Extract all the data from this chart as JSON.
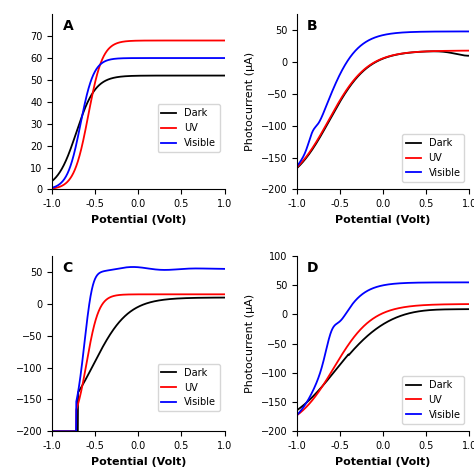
{
  "colors": [
    "black",
    "red",
    "blue"
  ],
  "legend_labels": [
    "Dark",
    "UV",
    "Visible"
  ],
  "xlabel": "Potential (Volt)",
  "ylabel_BC": "Photocurrent (μA)",
  "xlim": [
    -1.0,
    1.0
  ],
  "xticks": [
    -1.0,
    -0.5,
    0.0,
    0.5,
    1.0
  ],
  "panel_labels": [
    "A",
    "B",
    "C",
    "D"
  ],
  "ylim_B": [
    -200,
    75
  ],
  "ylim_D": [
    -200,
    100
  ],
  "yticks_B": [
    -200,
    -150,
    -100,
    -50,
    0,
    50
  ],
  "yticks_D": [
    -200,
    -150,
    -100,
    -50,
    0,
    50,
    100
  ],
  "figure_bg": "white",
  "tick_label_size": 7,
  "axis_label_size": 8,
  "legend_fontsize": 7,
  "panel_label_size": 10,
  "lw": 1.3
}
